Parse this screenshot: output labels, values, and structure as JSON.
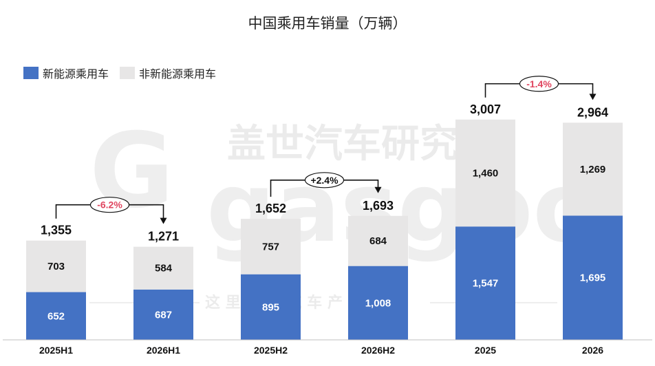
{
  "chart_data": {
    "type": "bar",
    "stacked": true,
    "title": "中国乘用车销量（万辆）",
    "categories": [
      "2025H1",
      "2026H1",
      "2025H2",
      "2026H2",
      "2025",
      "2026"
    ],
    "series": [
      {
        "name": "新能源乘用车",
        "values": [
          652,
          687,
          895,
          1008,
          1547,
          1695
        ],
        "value_labels": [
          "652",
          "687",
          "895",
          "1,008",
          "1,547",
          "1,695"
        ],
        "color": "#4472C4"
      },
      {
        "name": "非新能源乘用车",
        "values": [
          703,
          584,
          757,
          684,
          1460,
          1269
        ],
        "value_labels": [
          "703",
          "584",
          "757",
          "684",
          "1,460",
          "1,269"
        ],
        "color": "#E7E6E6"
      }
    ],
    "totals": [
      1355,
      1271,
      1652,
      1693,
      3007,
      2964
    ],
    "total_labels": [
      "1,355",
      "1,271",
      "1,652",
      "1,693",
      "3,007",
      "2,964"
    ],
    "changes": [
      {
        "from": 0,
        "to": 1,
        "label": "-6.2%",
        "color": "#E0455F"
      },
      {
        "from": 2,
        "to": 3,
        "label": "+2.4%",
        "color": "#111111"
      },
      {
        "from": 4,
        "to": 5,
        "label": "-1.4%",
        "color": "#E0455F"
      }
    ],
    "legend_position": "top-left",
    "grid": false
  },
  "legend": {
    "items": [
      {
        "label": "新能源乘用车",
        "color": "#4472C4"
      },
      {
        "label": "非新能源乘用车",
        "color": "#E7E6E6"
      }
    ]
  },
  "watermark": {
    "title": "盖世汽车研究院",
    "brand": "gasgoo",
    "tagline": "这 里 读 懂 汽 车 产 业"
  }
}
